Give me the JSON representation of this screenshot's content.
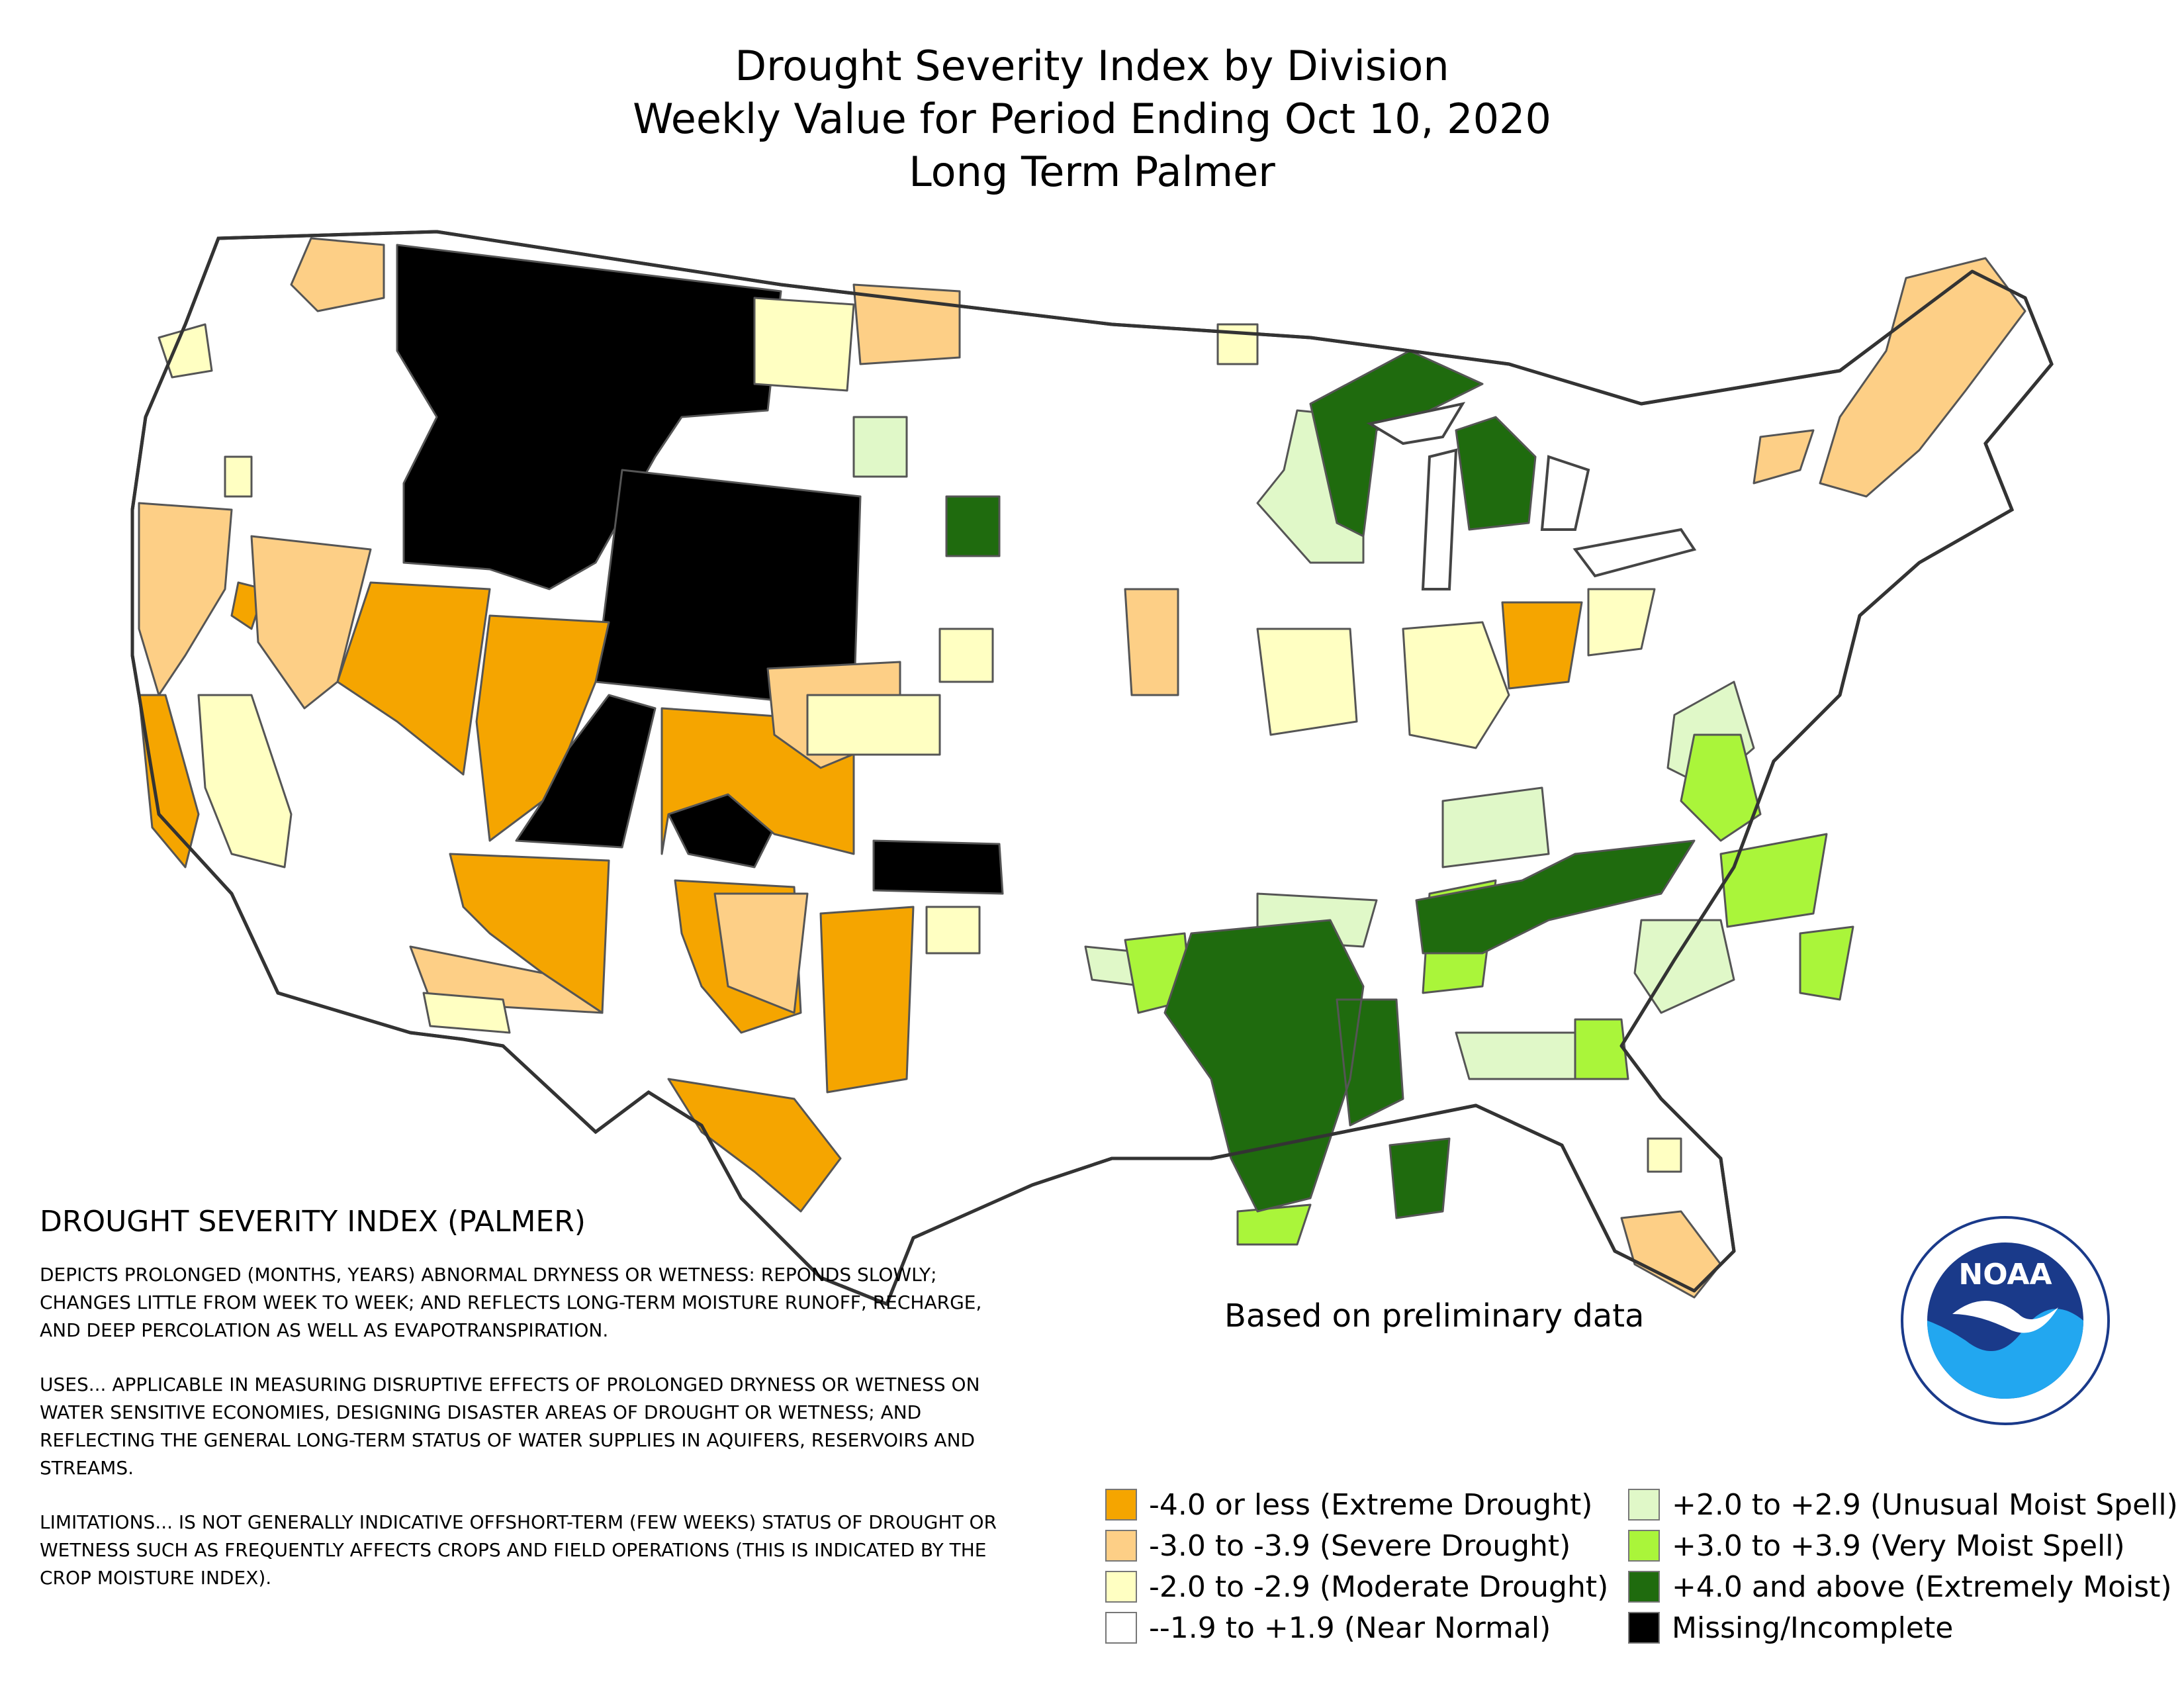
{
  "title": {
    "line1": "Drought Severity Index by Division",
    "line2": "Weekly Value for Period Ending Oct 10, 2020",
    "line3": "Long Term Palmer"
  },
  "note": "Based on preliminary data",
  "description": {
    "heading": "DROUGHT SEVERITY INDEX (PALMER)",
    "paragraphs": [
      "DEPICTS PROLONGED (MONTHS, YEARS) ABNORMAL DRYNESS OR WETNESS: REPONDS SLOWLY; CHANGES LITTLE FROM WEEK TO WEEK; AND REFLECTS LONG-TERM MOISTURE RUNOFF, RECHARGE, AND DEEP PERCOLATION AS WELL AS EVAPOTRANSPIRATION.",
      "USES... APPLICABLE IN MEASURING DISRUPTIVE EFFECTS OF PROLONGED DRYNESS OR WETNESS ON WATER SENSITIVE ECONOMIES, DESIGNING DISASTER AREAS OF DROUGHT OR WETNESS; AND REFLECTING THE GENERAL LONG-TERM STATUS OF WATER SUPPLIES IN AQUIFERS, RESERVOIRS AND STREAMS.",
      "LIMITATIONS... IS NOT GENERALLY INDICATIVE OFFSHORT-TERM (FEW WEEKS) STATUS OF DROUGHT OR WETNESS SUCH AS FREQUENTLY AFFECTS CROPS AND FIELD OPERATIONS (THIS IS INDICATED BY THE CROP MOISTURE INDEX)."
    ]
  },
  "legend": [
    {
      "label": "-4.0 or less (Extreme Drought)",
      "color": "#f5a500"
    },
    {
      "label": "-3.0 to -3.9 (Severe Drought)",
      "color": "#fdcf86"
    },
    {
      "label": "-2.0 to -2.9 (Moderate Drought)",
      "color": "#ffffc2"
    },
    {
      "label": "--1.9 to +1.9 (Near Normal)",
      "color": "#ffffff"
    },
    {
      "label": "+2.0 to +2.9 (Unusual Moist Spell)",
      "color": "#e0f8c8"
    },
    {
      "label": "+3.0 to +3.9 (Very Moist Spell)",
      "color": "#aaf53a"
    },
    {
      "label": "+4.0 and above (Extremely Moist)",
      "color": "#1f6b0e"
    },
    {
      "label": "Missing/Incomplete",
      "color": "#000000"
    }
  ],
  "map_regions": [
    {
      "name": "region-montana-idaho-missing",
      "category": "Missing/Incomplete",
      "color": "#000000"
    },
    {
      "name": "region-wyoming-missing",
      "category": "Missing/Incomplete",
      "color": "#000000"
    },
    {
      "name": "region-utah-missing",
      "category": "Missing/Incomplete",
      "color": "#000000"
    },
    {
      "name": "region-oklahoma-panhandle-missing",
      "category": "Missing/Incomplete",
      "color": "#000000"
    },
    {
      "name": "region-colorado-sw-missing",
      "category": "Missing/Incomplete",
      "color": "#000000"
    },
    {
      "name": "region-nevada-utah-extreme",
      "category": "Extreme Drought",
      "color": "#f5a500"
    },
    {
      "name": "region-colorado-extreme",
      "category": "Extreme Drought",
      "color": "#f5a500"
    },
    {
      "name": "region-arizona-extreme",
      "category": "Extreme Drought",
      "color": "#f5a500"
    },
    {
      "name": "region-new-mexico-extreme",
      "category": "Extreme Drought",
      "color": "#f5a500"
    },
    {
      "name": "region-west-texas-extreme",
      "category": "Extreme Drought",
      "color": "#f5a500"
    },
    {
      "name": "region-pennsylvania-extreme",
      "category": "Extreme Drought",
      "color": "#f5a500"
    },
    {
      "name": "region-california-coast-extreme",
      "category": "Extreme Drought",
      "color": "#f5a500"
    },
    {
      "name": "region-california-severe",
      "category": "Severe Drought",
      "color": "#fdcf86"
    },
    {
      "name": "region-nevada-severe",
      "category": "Severe Drought",
      "color": "#fdcf86"
    },
    {
      "name": "region-washington-severe",
      "category": "Severe Drought",
      "color": "#fdcf86"
    },
    {
      "name": "region-new-england-severe",
      "category": "Severe Drought",
      "color": "#fdcf86"
    },
    {
      "name": "region-iowa-severe",
      "category": "Severe Drought",
      "color": "#fdcf86"
    },
    {
      "name": "region-florida-severe",
      "category": "Severe Drought",
      "color": "#fdcf86"
    },
    {
      "name": "region-central-valley-moderate",
      "category": "Moderate Drought",
      "color": "#ffffc2"
    },
    {
      "name": "region-ohio-valley-moderate",
      "category": "Moderate Drought",
      "color": "#ffffc2"
    },
    {
      "name": "region-plains-moderate",
      "category": "Moderate Drought",
      "color": "#ffffc2"
    },
    {
      "name": "region-wisconsin-unusual-moist",
      "category": "Unusual Moist Spell",
      "color": "#e0f8c8"
    },
    {
      "name": "region-carolinas-unusual-moist",
      "category": "Unusual Moist Spell",
      "color": "#e0f8c8"
    },
    {
      "name": "region-kentucky-unusual-moist",
      "category": "Unusual Moist Spell",
      "color": "#e0f8c8"
    },
    {
      "name": "region-virginia-very-moist",
      "category": "Very Moist Spell",
      "color": "#aaf53a"
    },
    {
      "name": "region-south-very-moist",
      "category": "Very Moist Spell",
      "color": "#aaf53a"
    },
    {
      "name": "region-michigan-extremely-moist",
      "category": "Extremely Moist",
      "color": "#1f6b0e"
    },
    {
      "name": "region-arkansas-extremely-moist",
      "category": "Extremely Moist",
      "color": "#1f6b0e"
    },
    {
      "name": "region-tennessee-extremely-moist",
      "category": "Extremely Moist",
      "color": "#1f6b0e"
    },
    {
      "name": "region-south-dakota-extremely-moist",
      "category": "Extremely Moist",
      "color": "#1f6b0e"
    }
  ]
}
